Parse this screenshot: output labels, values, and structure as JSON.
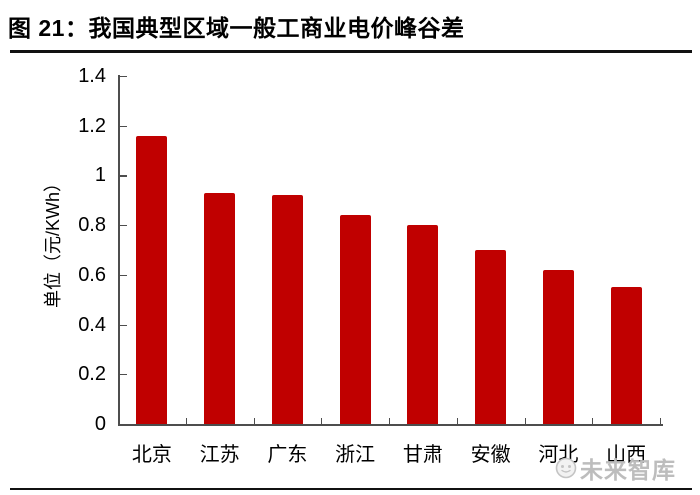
{
  "figure": {
    "title": "图 21：我国典型区域一般工商业电价峰谷差"
  },
  "watermark": {
    "text": "未来智库",
    "icon": "panda-face-logo",
    "color": "#bdbdbd"
  },
  "chart_data": {
    "type": "bar",
    "title": "图 21：我国典型区域一般工商业电价峰谷差",
    "categories": [
      "北京",
      "江苏",
      "广东",
      "浙江",
      "甘肃",
      "安徽",
      "河北",
      "山西"
    ],
    "values": [
      1.16,
      0.93,
      0.92,
      0.84,
      0.8,
      0.7,
      0.62,
      0.55
    ],
    "xlabel": "",
    "ylabel": "单位（元/KWh）",
    "ylim": [
      0,
      1.4
    ],
    "ytick_values": [
      0,
      0.2,
      0.4,
      0.6,
      0.8,
      1,
      1.2,
      1.4
    ],
    "ytick_labels": [
      "0",
      "0.2",
      "0.4",
      "0.6",
      "0.8",
      "1",
      "1.2",
      "1.4"
    ],
    "bar_color": "#c00000",
    "axis_color": "#4d4d4d",
    "grid": false,
    "legend": false
  }
}
